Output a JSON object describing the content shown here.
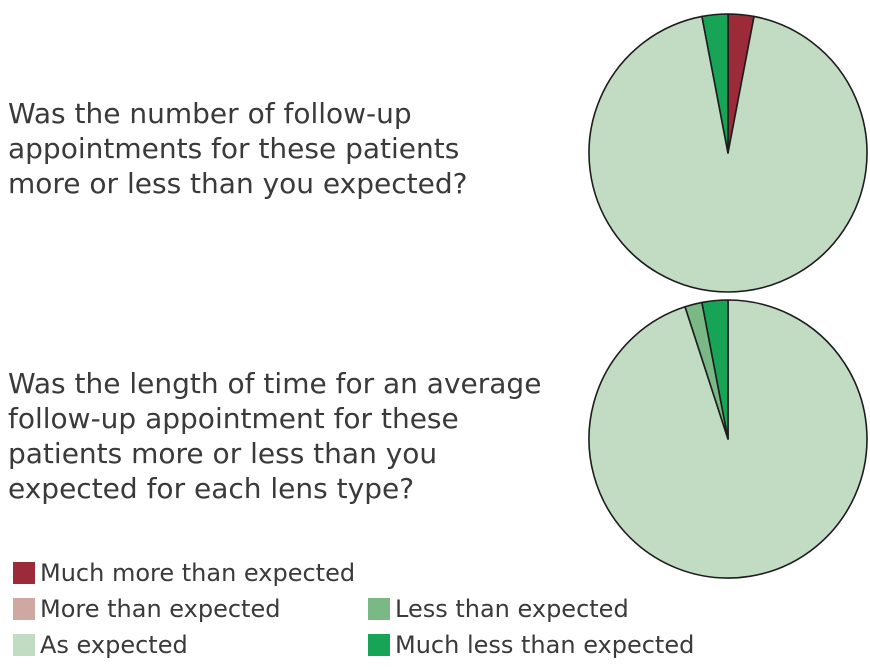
{
  "style": {
    "background_color": "#ffffff",
    "text_color": "#3a3a3a",
    "pie_outline_color": "#1d1d1d"
  },
  "palette": {
    "much_more_than_expected": "#9c2b39",
    "more_than_expected": "#d0a8a2",
    "as_expected": "#c1dcc2",
    "less_than_expected": "#7ab985",
    "much_less_than_expected": "#17a456"
  },
  "chart_data": [
    {
      "type": "pie",
      "title": "Was the number of follow-up\nappointments for these patients\nmore or less than you expected?",
      "start_angle": "12 o'clock",
      "direction": "clockwise",
      "slices": [
        {
          "label": "Much more than expected",
          "value": 3,
          "color": "#9c2b39"
        },
        {
          "label": "As expected",
          "value": 94,
          "color": "#c1dcc2"
        },
        {
          "label": "Much less than expected",
          "value": 3,
          "color": "#17a456"
        }
      ]
    },
    {
      "type": "pie",
      "title": "Was the length of time for an average\nfollow-up appointment for these\npatients more or less than you\nexpected for each lens type?",
      "start_angle": "12 o'clock",
      "direction": "clockwise",
      "slices": [
        {
          "label": "As expected",
          "value": 95,
          "color": "#c1dcc2"
        },
        {
          "label": "Less than expected",
          "value": 2,
          "color": "#7ab985"
        },
        {
          "label": "Much less than expected",
          "value": 3,
          "color": "#17a456"
        }
      ]
    }
  ],
  "legend": {
    "columns": [
      {
        "items": [
          {
            "label": "Much more than expected",
            "color": "#9c2b39"
          },
          {
            "label": "More than expected",
            "color": "#d0a8a2"
          },
          {
            "label": "As expected",
            "color": "#c1dcc2"
          }
        ]
      },
      {
        "items": [
          {
            "label": "Less than expected",
            "color": "#7ab985"
          },
          {
            "label": "Much less than expected",
            "color": "#17a456"
          }
        ]
      }
    ]
  }
}
